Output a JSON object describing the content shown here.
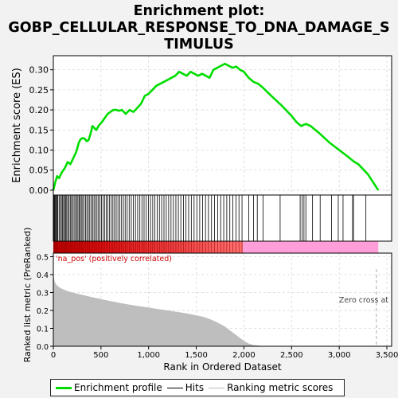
{
  "title_lines": [
    "Enrichment plot:",
    "GOBP_CELLULAR_RESPONSE_TO_DNA_DAMAGE_S",
    "TIMULUS"
  ],
  "colors": {
    "es_line": "#00dd00",
    "hits": "#000000",
    "metric_fill": "#bebebe",
    "pos_band": "#e00000",
    "neg_band": "#ff9ed8",
    "zero_cross": "#aaaaaa",
    "pos_label": "#cc0000"
  },
  "annotations": {
    "pos_label": "'na_pos' (positively correlated)",
    "zero_cross": "Zero cross at"
  },
  "legend": {
    "es_profile": "Enrichment profile",
    "hits": "Hits",
    "ranking": "Ranking metric scores"
  },
  "chart_data": {
    "type": "line",
    "n_genes": 3410,
    "zero_cross_rank": 3390,
    "pos_region_end_rank": 1990,
    "x_ticks": [
      0,
      500,
      1000,
      1500,
      2000,
      2500,
      3000,
      3500
    ],
    "x_tick_labels": [
      "0",
      "500",
      "1,000",
      "1,500",
      "2,000",
      "2,500",
      "3,000",
      "3,500"
    ],
    "xlabel": "Rank in Ordered Dataset",
    "xlim": [
      0,
      3550
    ],
    "enrichment": {
      "ylabel": "Enrichment score (ES)",
      "ylim": [
        -0.012,
        0.335
      ],
      "y_ticks": [
        0.0,
        0.05,
        0.1,
        0.15,
        0.2,
        0.25,
        0.3
      ],
      "y_tick_labels": [
        "0.00",
        "0.05",
        "0.10",
        "0.15",
        "0.20",
        "0.25",
        "0.30"
      ],
      "x": [
        0,
        20,
        40,
        60,
        90,
        120,
        150,
        180,
        210,
        240,
        270,
        290,
        310,
        330,
        350,
        370,
        390,
        410,
        430,
        450,
        480,
        510,
        540,
        570,
        600,
        630,
        660,
        690,
        720,
        760,
        800,
        840,
        880,
        920,
        960,
        1000,
        1040,
        1080,
        1120,
        1160,
        1200,
        1240,
        1280,
        1320,
        1360,
        1400,
        1440,
        1480,
        1520,
        1560,
        1600,
        1640,
        1680,
        1720,
        1760,
        1800,
        1840,
        1880,
        1920,
        1960,
        2000,
        2050,
        2100,
        2150,
        2200,
        2300,
        2400,
        2500,
        2550,
        2600,
        2650,
        2700,
        2800,
        2900,
        3000,
        3100,
        3150,
        3200,
        3300,
        3410
      ],
      "y": [
        0.0,
        0.02,
        0.035,
        0.03,
        0.045,
        0.055,
        0.07,
        0.065,
        0.08,
        0.095,
        0.12,
        0.128,
        0.13,
        0.128,
        0.122,
        0.125,
        0.14,
        0.16,
        0.155,
        0.15,
        0.162,
        0.17,
        0.18,
        0.19,
        0.195,
        0.2,
        0.2,
        0.198,
        0.2,
        0.19,
        0.2,
        0.195,
        0.205,
        0.215,
        0.235,
        0.24,
        0.25,
        0.26,
        0.265,
        0.27,
        0.275,
        0.28,
        0.285,
        0.295,
        0.29,
        0.285,
        0.295,
        0.29,
        0.285,
        0.29,
        0.285,
        0.28,
        0.3,
        0.305,
        0.31,
        0.315,
        0.31,
        0.305,
        0.308,
        0.3,
        0.295,
        0.28,
        0.27,
        0.265,
        0.255,
        0.232,
        0.21,
        0.185,
        0.17,
        0.16,
        0.165,
        0.16,
        0.14,
        0.118,
        0.1,
        0.082,
        0.072,
        0.065,
        0.04,
        0.0
      ]
    },
    "hits": [
      3,
      8,
      14,
      22,
      31,
      38,
      46,
      60,
      72,
      85,
      97,
      108,
      118,
      128,
      140,
      152,
      165,
      178,
      190,
      205,
      218,
      232,
      246,
      258,
      270,
      282,
      294,
      308,
      322,
      338,
      352,
      367,
      382,
      398,
      412,
      427,
      442,
      458,
      474,
      490,
      506,
      522,
      540,
      556,
      572,
      590,
      608,
      625,
      642,
      660,
      678,
      697,
      716,
      735,
      754,
      775,
      796,
      818,
      840,
      862,
      885,
      908,
      930,
      952,
      975,
      998,
      1020,
      1043,
      1066,
      1090,
      1113,
      1137,
      1161,
      1185,
      1210,
      1235,
      1260,
      1286,
      1312,
      1338,
      1365,
      1392,
      1420,
      1448,
      1477,
      1506,
      1536,
      1566,
      1597,
      1628,
      1660,
      1692,
      1724,
      1756,
      1788,
      1820,
      1852,
      1884,
      1916,
      1948,
      1980,
      2050,
      2100,
      2140,
      2200,
      2380,
      2590,
      2610,
      2630,
      2650,
      2720,
      2800,
      2920,
      2990,
      3040,
      3140,
      3150,
      3280
    ],
    "ranking_metric": {
      "ylabel": "Ranked list metric (PreRanked)",
      "ylim": [
        0,
        0.52
      ],
      "y_ticks": [
        0.0,
        0.1,
        0.2,
        0.3,
        0.4,
        0.5
      ],
      "y_tick_labels": [
        "0.0",
        "0.1",
        "0.2",
        "0.3",
        "0.4",
        "0.5"
      ],
      "x": [
        0,
        5,
        15,
        30,
        60,
        100,
        150,
        200,
        300,
        400,
        500,
        600,
        700,
        800,
        900,
        1000,
        1100,
        1200,
        1300,
        1400,
        1500,
        1550,
        1600,
        1650,
        1700,
        1750,
        1800,
        1850,
        1900,
        1950,
        2000,
        2050,
        2100,
        2150,
        2200,
        2300,
        2500,
        3000,
        3410
      ],
      "y": [
        0.41,
        0.385,
        0.36,
        0.345,
        0.33,
        0.318,
        0.308,
        0.3,
        0.287,
        0.275,
        0.263,
        0.252,
        0.242,
        0.232,
        0.224,
        0.216,
        0.208,
        0.2,
        0.192,
        0.183,
        0.173,
        0.167,
        0.16,
        0.15,
        0.138,
        0.125,
        0.11,
        0.09,
        0.07,
        0.05,
        0.03,
        0.015,
        0.007,
        0.004,
        0.002,
        0.001,
        0.0005,
        0.0002,
        0.0
      ]
    }
  }
}
